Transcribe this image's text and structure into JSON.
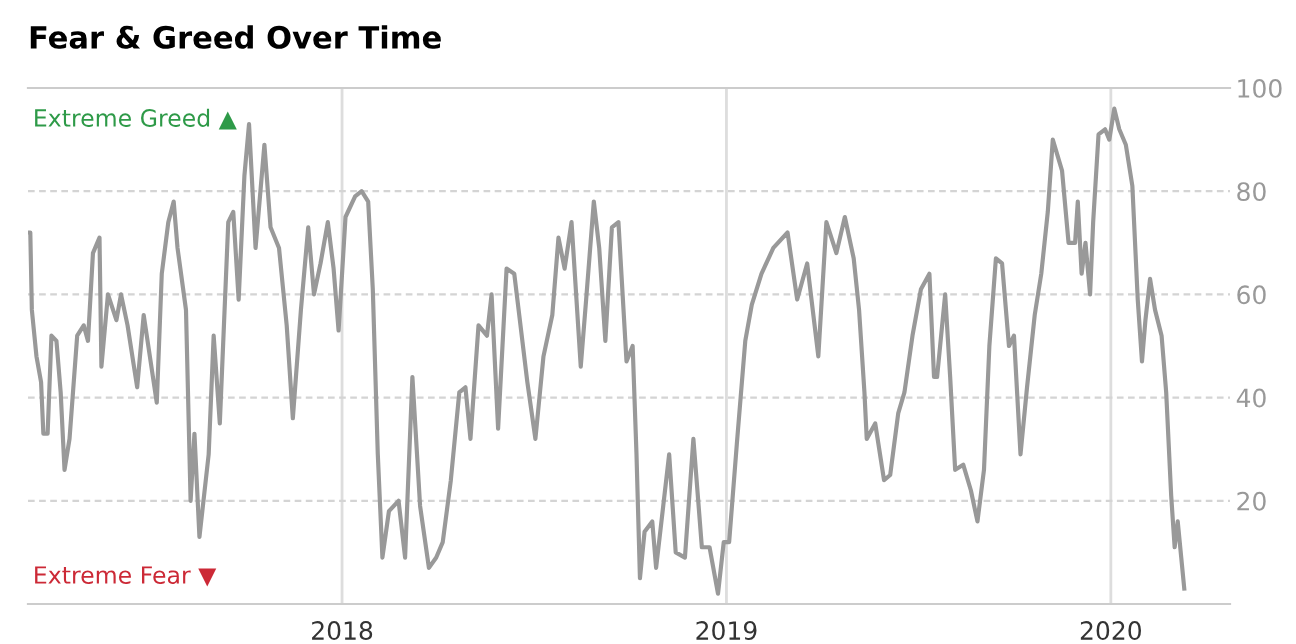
{
  "chart_data": {
    "type": "line",
    "title": "Fear & Greed Over Time",
    "annotations": [
      "Extreme Greed ▲",
      "Extreme Fear ▼"
    ],
    "xlim": [
      2017.183,
      2020.31
    ],
    "xticks": [
      2018,
      2019,
      2020
    ],
    "ylim": [
      0,
      100
    ],
    "yticks": [
      20,
      40,
      60,
      80,
      100
    ],
    "grid": true,
    "legend": false,
    "marker": "none",
    "line_style": "solid",
    "series": [
      {
        "color": "#999999",
        "x": [
          2017.183,
          2017.189,
          2017.193,
          2017.205,
          2017.217,
          2017.223,
          2017.234,
          2017.244,
          2017.257,
          2017.268,
          2017.278,
          2017.291,
          2017.311,
          2017.328,
          2017.339,
          2017.352,
          2017.369,
          2017.374,
          2017.391,
          2017.413,
          2017.425,
          2017.442,
          2017.467,
          2017.484,
          2017.518,
          2017.531,
          2017.548,
          2017.562,
          2017.572,
          2017.594,
          2017.606,
          2017.616,
          2017.629,
          2017.653,
          2017.666,
          2017.682,
          2017.704,
          2017.717,
          2017.731,
          2017.746,
          2017.758,
          2017.775,
          2017.798,
          2017.814,
          2017.836,
          2017.856,
          2017.872,
          2017.893,
          2017.912,
          2017.927,
          2017.944,
          2017.963,
          2017.978,
          2017.991,
          2018.009,
          2018.034,
          2018.051,
          2018.068,
          2018.08,
          2018.093,
          2018.105,
          2018.122,
          2018.147,
          2018.164,
          2018.183,
          2018.203,
          2018.226,
          2018.245,
          2018.262,
          2018.283,
          2018.305,
          2018.321,
          2018.334,
          2018.355,
          2018.377,
          2018.389,
          2018.406,
          2018.428,
          2018.448,
          2018.482,
          2018.503,
          2018.524,
          2018.547,
          2018.563,
          2018.579,
          2018.597,
          2018.621,
          2018.635,
          2018.655,
          2018.669,
          2018.685,
          2018.702,
          2018.719,
          2018.74,
          2018.756,
          2018.766,
          2018.775,
          2018.787,
          2018.807,
          2018.817,
          2018.851,
          2018.868,
          2018.892,
          2018.914,
          2018.936,
          2018.956,
          2018.978,
          2018.993,
          2019.007,
          2019.027,
          2019.049,
          2019.066,
          2019.091,
          2019.122,
          2019.159,
          2019.184,
          2019.21,
          2019.239,
          2019.26,
          2019.286,
          2019.308,
          2019.331,
          2019.345,
          2019.359,
          2019.365,
          2019.387,
          2019.41,
          2019.426,
          2019.447,
          2019.463,
          2019.484,
          2019.506,
          2019.528,
          2019.54,
          2019.548,
          2019.569,
          2019.582,
          2019.595,
          2019.616,
          2019.636,
          2019.653,
          2019.67,
          2019.684,
          2019.701,
          2019.717,
          2019.735,
          2019.748,
          2019.765,
          2019.782,
          2019.802,
          2019.819,
          2019.836,
          2019.849,
          2019.873,
          2019.89,
          2019.907,
          2019.914,
          2019.924,
          2019.934,
          2019.946,
          2019.954,
          2019.968,
          2019.985,
          2019.996,
          2020.009,
          2020.022,
          2020.039,
          2020.056,
          2020.07,
          2020.081,
          2020.09,
          2020.102,
          2020.115,
          2020.132,
          2020.144,
          2020.157,
          2020.166,
          2020.174,
          2020.191
        ],
        "values": [
          72,
          72,
          57,
          48,
          43,
          33,
          33,
          52,
          51,
          41,
          26,
          32,
          52,
          54,
          51,
          68,
          71,
          46,
          60,
          55,
          60,
          54,
          42,
          56,
          39,
          64,
          74,
          78,
          69,
          57,
          20,
          33,
          13,
          29,
          52,
          35,
          74,
          76,
          59,
          83,
          93,
          69,
          89,
          73,
          69,
          54,
          36,
          57,
          73,
          60,
          66,
          74,
          65,
          53,
          75,
          79,
          80,
          78,
          61,
          29,
          9,
          18,
          20,
          9,
          44,
          19,
          7,
          9,
          12,
          24,
          41,
          42,
          32,
          54,
          52,
          60,
          34,
          65,
          64,
          43,
          32,
          48,
          56,
          71,
          65,
          74,
          46,
          59,
          78,
          69,
          51,
          73,
          74,
          47,
          50,
          29,
          5,
          14,
          16,
          7,
          29,
          10,
          9,
          32,
          11,
          11,
          2,
          12,
          12,
          31,
          51,
          58,
          64,
          69,
          72,
          59,
          66,
          48,
          74,
          68,
          75,
          67,
          57,
          41,
          32,
          35,
          24,
          25,
          37,
          41,
          52,
          61,
          64,
          44,
          44,
          60,
          44,
          26,
          27,
          22,
          16,
          26,
          50,
          67,
          66,
          50,
          52,
          29,
          42,
          56,
          64,
          76,
          90,
          84,
          70,
          70,
          78,
          64,
          70,
          60,
          74,
          91,
          92,
          90,
          96,
          92,
          89,
          81,
          59,
          47,
          55,
          63,
          57,
          52,
          41,
          21,
          11,
          16,
          3
        ]
      }
    ]
  }
}
